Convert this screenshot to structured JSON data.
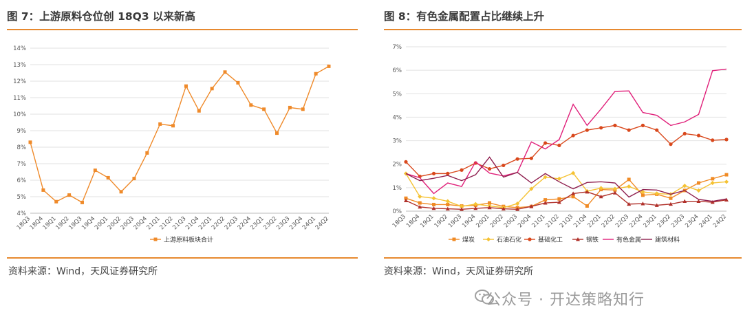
{
  "left": {
    "title": "图 7：上游原料仓位创 18Q3 以来新高",
    "source": "资料来源：Wind，天风证券研究所"
  },
  "right": {
    "title": "图 8：有色金属配置占比继续上升",
    "source": "资料来源：Wind，天风证券研究所"
  },
  "watermark": "公众号 · 开达策略知行",
  "accent_color": "#e7892f",
  "chart_data": [
    {
      "type": "line",
      "categories": [
        "18Q3",
        "18Q4",
        "19Q1",
        "19Q2",
        "19Q3",
        "19Q4",
        "20Q1",
        "20Q2",
        "20Q3",
        "20Q4",
        "21Q1",
        "21Q2",
        "21Q3",
        "21Q4",
        "22Q1",
        "22Q2",
        "22Q3",
        "22Q4",
        "23Q1",
        "23Q2",
        "23Q3",
        "23Q4",
        "24Q1",
        "24Q2"
      ],
      "yticks": [
        "4%",
        "5%",
        "6%",
        "7%",
        "8%",
        "9%",
        "10%",
        "11%",
        "12%",
        "13%",
        "14%"
      ],
      "ylim": [
        4,
        14
      ],
      "grid": true,
      "legend_position": "bottom",
      "series": [
        {
          "name": "上游原料板块合计",
          "color": "#ef8a2a",
          "marker": "square",
          "values": [
            8.3,
            5.4,
            4.7,
            5.1,
            4.65,
            6.6,
            6.15,
            5.3,
            6.1,
            7.65,
            9.4,
            9.3,
            11.7,
            10.2,
            11.55,
            12.55,
            11.9,
            10.55,
            10.3,
            8.85,
            10.4,
            10.3,
            12.45,
            12.9
          ]
        }
      ]
    },
    {
      "type": "line",
      "categories": [
        "18Q3",
        "18Q4",
        "19Q1",
        "19Q2",
        "19Q3",
        "19Q4",
        "20Q1",
        "20Q2",
        "20Q3",
        "20Q4",
        "21Q1",
        "21Q2",
        "21Q3",
        "21Q4",
        "22Q1",
        "22Q2",
        "22Q3",
        "22Q4",
        "23Q1",
        "23Q2",
        "23Q3",
        "23Q4",
        "24Q1",
        "24Q2"
      ],
      "yticks": [
        "0%",
        "1%",
        "2%",
        "3%",
        "4%",
        "5%",
        "6%",
        "7%"
      ],
      "ylim": [
        0,
        7
      ],
      "grid": true,
      "legend_position": "bottom",
      "series": [
        {
          "name": "煤炭",
          "color": "#f08a24",
          "marker": "square",
          "values": [
            0.55,
            0.35,
            0.28,
            0.28,
            0.22,
            0.25,
            0.35,
            0.2,
            0.15,
            0.2,
            0.48,
            0.52,
            0.62,
            0.22,
            0.92,
            0.9,
            1.35,
            0.68,
            0.72,
            0.55,
            0.88,
            1.2,
            1.38,
            1.55
          ]
        },
        {
          "name": "石油石化",
          "color": "#f5c233",
          "marker": "diamond",
          "values": [
            1.6,
            0.62,
            0.55,
            0.42,
            0.2,
            0.3,
            0.22,
            0.15,
            0.32,
            0.95,
            1.45,
            1.38,
            1.62,
            0.85,
            0.98,
            0.95,
            1.05,
            0.82,
            0.75,
            0.72,
            1.08,
            0.88,
            1.2,
            1.25
          ]
        },
        {
          "name": "基础化工",
          "color": "#d9481c",
          "marker": "circle",
          "values": [
            2.1,
            1.48,
            1.6,
            1.6,
            1.75,
            2.05,
            1.8,
            1.95,
            2.22,
            2.25,
            2.9,
            2.8,
            3.22,
            3.45,
            3.55,
            3.65,
            3.45,
            3.65,
            3.45,
            2.85,
            3.3,
            3.22,
            3.02,
            3.05
          ]
        },
        {
          "name": "钢铁",
          "color": "#b0302a",
          "marker": "triangle",
          "values": [
            0.45,
            0.18,
            0.12,
            0.1,
            0.08,
            0.12,
            0.15,
            0.1,
            0.08,
            0.2,
            0.35,
            0.38,
            0.75,
            0.82,
            0.62,
            0.78,
            0.3,
            0.32,
            0.25,
            0.3,
            0.42,
            0.42,
            0.38,
            0.48
          ]
        },
        {
          "name": "有色金属",
          "color": "#e0207a",
          "marker": "none",
          "values": [
            1.6,
            1.42,
            0.75,
            1.2,
            1.05,
            2.1,
            1.62,
            1.5,
            1.65,
            2.95,
            2.65,
            3.05,
            4.55,
            3.65,
            4.35,
            5.1,
            5.12,
            4.2,
            4.08,
            3.65,
            3.8,
            4.12,
            5.98,
            6.05
          ]
        },
        {
          "name": "建筑材料",
          "color": "#8e1e4e",
          "marker": "none",
          "values": [
            1.6,
            1.3,
            1.4,
            1.52,
            1.3,
            1.55,
            2.3,
            1.45,
            1.65,
            1.2,
            1.6,
            1.25,
            0.95,
            1.22,
            1.25,
            1.2,
            0.6,
            0.92,
            0.9,
            0.72,
            0.88,
            0.5,
            0.42,
            0.52
          ]
        }
      ]
    }
  ]
}
